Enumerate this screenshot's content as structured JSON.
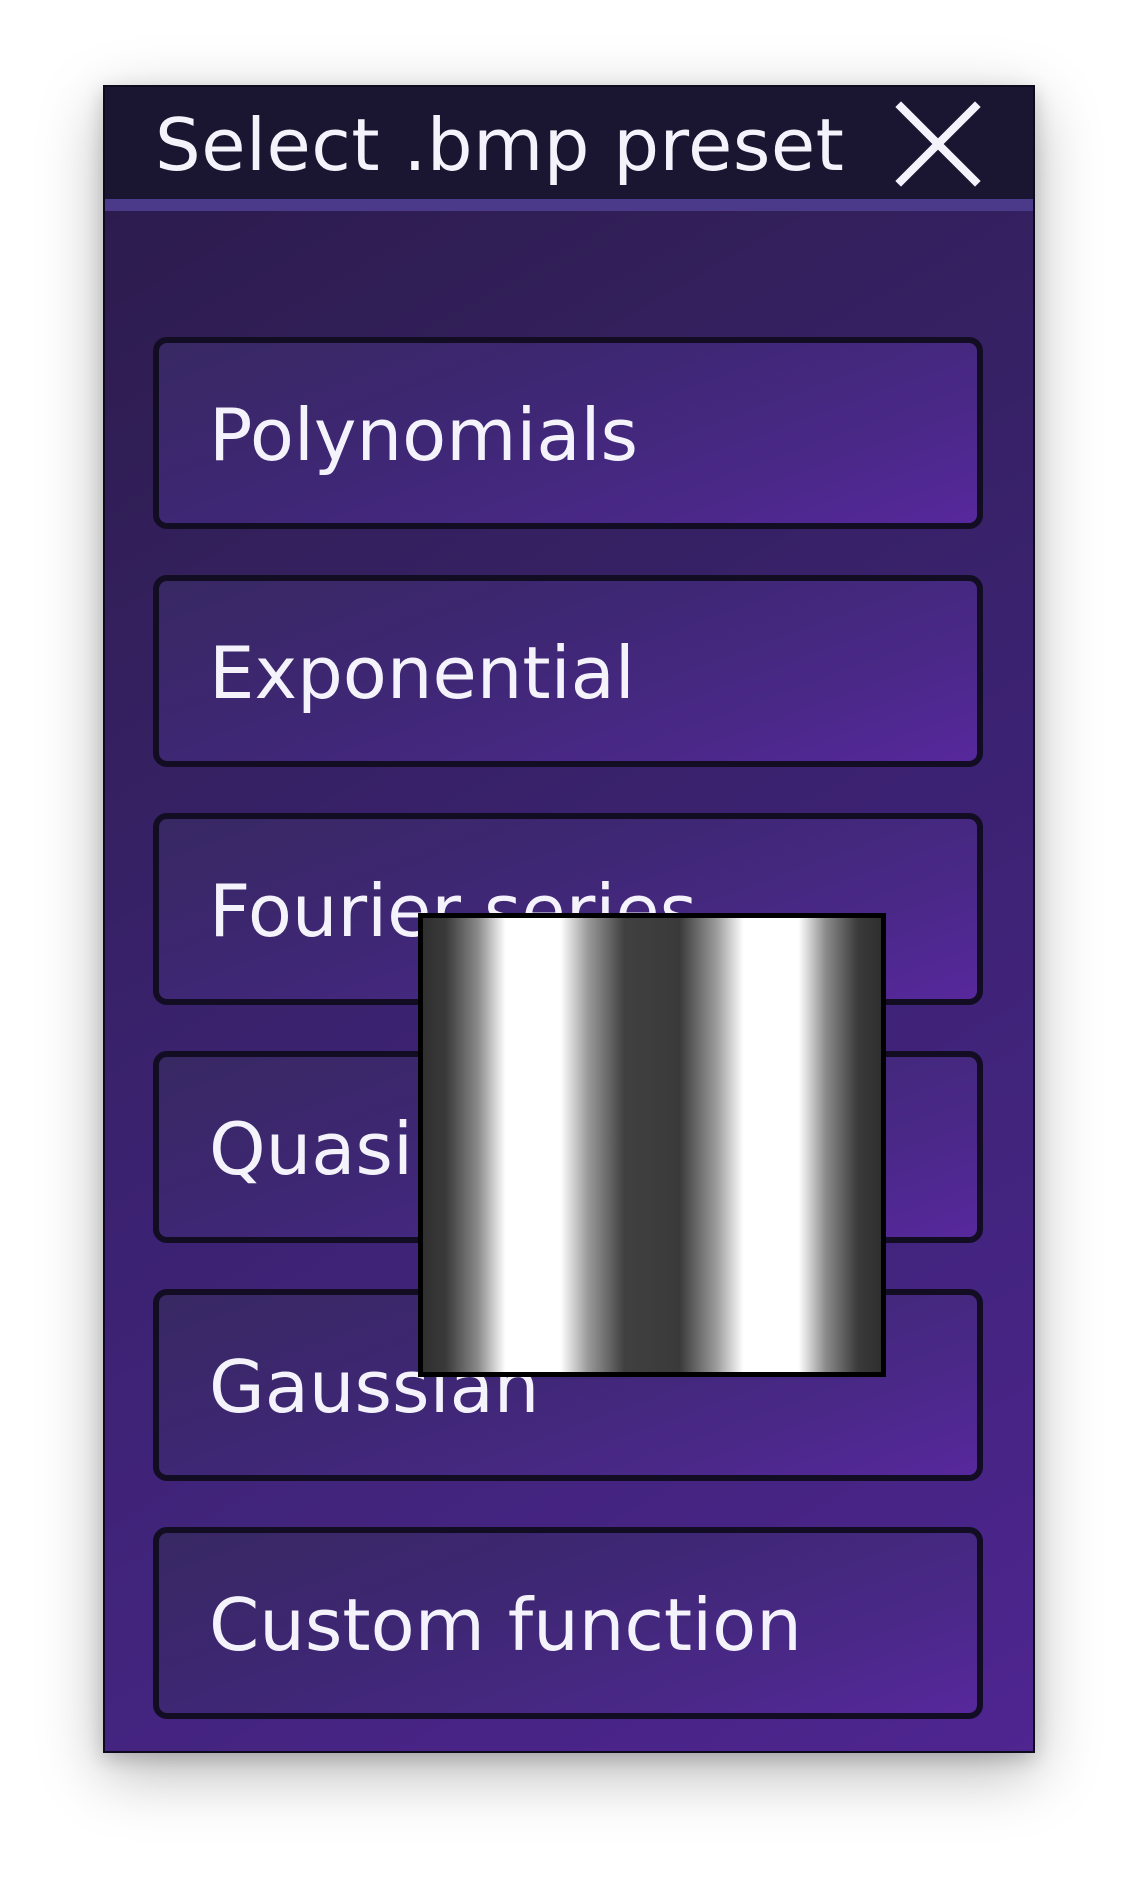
{
  "dialog": {
    "title": "Select .bmp preset",
    "close_icon": "close-x-icon",
    "options": [
      {
        "label": "Polynomials"
      },
      {
        "label": "Exponential"
      },
      {
        "label": "Fourier series"
      },
      {
        "label": "Quasiperiodic"
      },
      {
        "label": "Gaussian"
      },
      {
        "label": "Custom function"
      }
    ]
  },
  "preview": {
    "description_icon": "bmp-preview-image"
  },
  "colors": {
    "titlebar": "#1a1530",
    "titlebar_border": "#4b3a8a",
    "panel_start": "#2a1a4a",
    "panel_end": "#4f2590",
    "option_border": "#120d22",
    "text": "#f4f2fa"
  }
}
